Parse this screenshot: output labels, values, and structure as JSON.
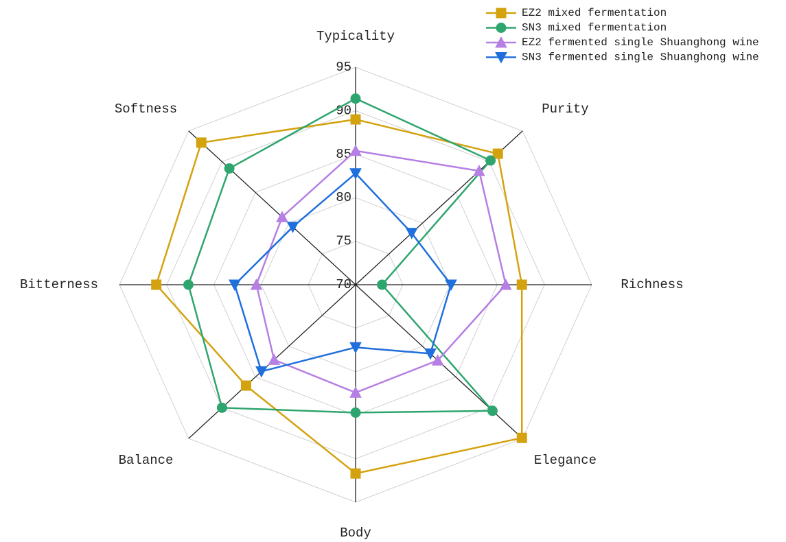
{
  "chart_data": {
    "type": "radar",
    "categories": [
      "Typicality",
      "Purity",
      "Richness",
      "Elegance",
      "Body",
      "Balance",
      "Bitterness",
      "Softness"
    ],
    "ylim": [
      70,
      95
    ],
    "yticks": [
      70,
      75,
      80,
      85,
      90,
      95
    ],
    "grid": true,
    "legend": "upper right",
    "series": [
      {
        "name": "EZ2 mixed fermentation",
        "color": "#d4a20f",
        "marker": "square",
        "values": [
          89,
          91.3,
          87.6,
          94.9,
          91.7,
          86.4,
          91.1,
          93.1
        ]
      },
      {
        "name": "SN3 mixed fermentation",
        "color": "#2ea56e",
        "marker": "circle",
        "values": [
          91.4,
          90.2,
          72.8,
          90.5,
          84.7,
          90,
          87.7,
          88.9
        ]
      },
      {
        "name": "EZ2 fermented single Shuanghong wine",
        "color": "#b57fe3",
        "marker": "triangle-up",
        "values": [
          85.4,
          88.5,
          85.9,
          82.3,
          82.4,
          82.2,
          80.5,
          81
        ]
      },
      {
        "name": "SN3 fermented single Shuanghong wine",
        "color": "#1f6fdc",
        "marker": "triangle-down",
        "values": [
          82.8,
          78.4,
          80.1,
          81.2,
          77.2,
          84.1,
          82.8,
          79.4
        ]
      }
    ]
  }
}
